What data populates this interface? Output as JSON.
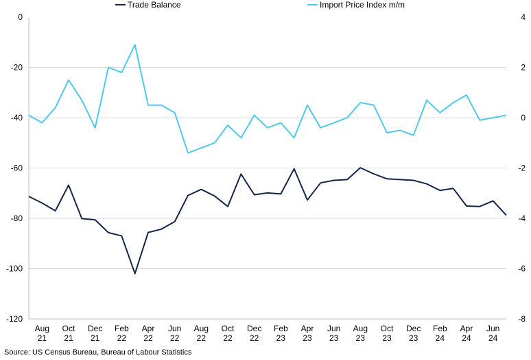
{
  "chart_data": {
    "type": "line",
    "title": "",
    "xlabel": "",
    "ylabel_left": "",
    "ylabel_right": "",
    "ylim_left": [
      -120,
      0
    ],
    "ylim_right": [
      -8,
      4
    ],
    "yticks_left": [
      "0",
      "-20",
      "-40",
      "-60",
      "-80",
      "-100",
      "-120"
    ],
    "yticks_right": [
      "4",
      "2",
      "0",
      "-2",
      "-4",
      "-6",
      "-8"
    ],
    "grid": "horizontal",
    "legend_position": "top-center",
    "x_ticks": [
      {
        "month": "Aug",
        "year": "21",
        "index": 1
      },
      {
        "month": "Oct",
        "year": "21",
        "index": 3
      },
      {
        "month": "Dec",
        "year": "21",
        "index": 5
      },
      {
        "month": "Feb",
        "year": "22",
        "index": 7
      },
      {
        "month": "Apr",
        "year": "22",
        "index": 9
      },
      {
        "month": "Jun",
        "year": "22",
        "index": 11
      },
      {
        "month": "Aug",
        "year": "22",
        "index": 13
      },
      {
        "month": "Oct",
        "year": "22",
        "index": 15
      },
      {
        "month": "Dec",
        "year": "22",
        "index": 17
      },
      {
        "month": "Feb",
        "year": "23",
        "index": 19
      },
      {
        "month": "Apr",
        "year": "23",
        "index": 21
      },
      {
        "month": "Jun",
        "year": "23",
        "index": 23
      },
      {
        "month": "Aug",
        "year": "23",
        "index": 25
      },
      {
        "month": "Oct",
        "year": "23",
        "index": 27
      },
      {
        "month": "Dec",
        "year": "23",
        "index": 29
      },
      {
        "month": "Feb",
        "year": "24",
        "index": 31
      },
      {
        "month": "Apr",
        "year": "24",
        "index": 33
      },
      {
        "month": "Jun",
        "year": "24",
        "index": 35
      }
    ],
    "x_dates": [
      "2021-07",
      "2021-08",
      "2021-09",
      "2021-10",
      "2021-11",
      "2021-12",
      "2022-01",
      "2022-02",
      "2022-03",
      "2022-04",
      "2022-05",
      "2022-06",
      "2022-07",
      "2022-08",
      "2022-09",
      "2022-10",
      "2022-11",
      "2022-12",
      "2023-01",
      "2023-02",
      "2023-03",
      "2023-04",
      "2023-05",
      "2023-06",
      "2023-07",
      "2023-08",
      "2023-09",
      "2023-10",
      "2023-11",
      "2023-12",
      "2024-01",
      "2024-02",
      "2024-03",
      "2024-04",
      "2024-05",
      "2024-06",
      "2024-07"
    ],
    "series": [
      {
        "name": "Trade Balance",
        "axis": "left",
        "color": "#13254a",
        "values": [
          -71.3,
          -73.9,
          -77.0,
          -66.8,
          -80.1,
          -80.6,
          -85.7,
          -87.0,
          -102.0,
          -85.6,
          -84.3,
          -81.3,
          -70.9,
          -68.5,
          -71.1,
          -75.3,
          -62.4,
          -70.6,
          -69.9,
          -70.3,
          -60.3,
          -72.7,
          -65.9,
          -64.9,
          -64.6,
          -59.9,
          -62.3,
          -64.3,
          -64.6,
          -64.9,
          -66.3,
          -68.9,
          -68.1,
          -75.1,
          -75.3,
          -73.1,
          -78.8
        ]
      },
      {
        "name": "Import Price Index m/m",
        "axis": "right",
        "color": "#4dc9ec",
        "values": [
          0.1,
          -0.2,
          0.4,
          1.5,
          0.7,
          -0.4,
          2.0,
          1.8,
          2.9,
          0.5,
          0.5,
          0.2,
          -1.4,
          -1.2,
          -1.0,
          -0.3,
          -0.8,
          0.1,
          -0.4,
          -0.2,
          -0.8,
          0.5,
          -0.4,
          -0.2,
          0.0,
          0.6,
          0.5,
          -0.6,
          -0.5,
          -0.7,
          0.7,
          0.2,
          0.6,
          0.9,
          -0.1,
          0.0,
          0.1
        ]
      }
    ]
  },
  "source": "Source: US Census Bureau, Bureau of Labour Statistics"
}
